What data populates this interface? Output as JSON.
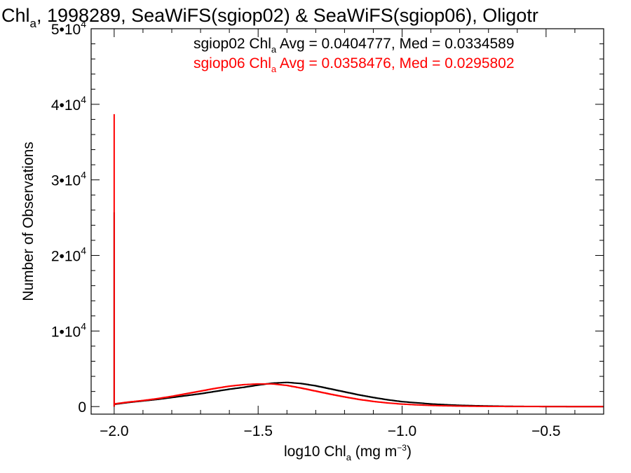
{
  "chart_data": {
    "type": "line",
    "title_parts": {
      "pre": "Chl",
      "sub": "a",
      "post": ", 1998289, SeaWiFS(sgiop02) & SeaWiFS(sgiop06), Oligotr"
    },
    "xlabel_parts": {
      "pre": "log10 Chl",
      "sub": "a",
      "mid": " (mg m",
      "sup": "−3",
      "post": ")"
    },
    "ylabel": "Number of Observations",
    "xlim": [
      -2.08,
      -0.3
    ],
    "ylim": [
      -1000,
      50000
    ],
    "x_ticks": [
      -2.0,
      -1.5,
      -1.0,
      -0.5
    ],
    "x_tick_labels": [
      "−2.0",
      "−1.5",
      "−1.0",
      "−0.5"
    ],
    "y_ticks": [
      0,
      10000,
      20000,
      30000,
      40000,
      50000
    ],
    "y_tick_labels": [
      {
        "value": 0,
        "mantissa": "0",
        "exponent": ""
      },
      {
        "value": 10000,
        "mantissa": "1•10",
        "exponent": "4"
      },
      {
        "value": 20000,
        "mantissa": "2•10",
        "exponent": "4"
      },
      {
        "value": 30000,
        "mantissa": "3•10",
        "exponent": "4"
      },
      {
        "value": 40000,
        "mantissa": "4•10",
        "exponent": "4"
      },
      {
        "value": 50000,
        "mantissa": "5•10",
        "exponent": "4"
      }
    ],
    "annotations": [
      {
        "series": "sgiop02",
        "color": "#000000",
        "pre": "sgiop02 Chl",
        "sub": "a",
        "post": " Avg = 0.0404777, Med = 0.0334589"
      },
      {
        "series": "sgiop06",
        "color": "#ff0000",
        "pre": "sgiop06 Chl",
        "sub": "a",
        "post": " Avg = 0.0358476, Med = 0.0295802"
      }
    ],
    "series": [
      {
        "name": "sgiop02",
        "color": "#000000",
        "spike": {
          "x": -2.0,
          "y": 25700
        },
        "x": [
          -2.0,
          -1.95,
          -1.9,
          -1.85,
          -1.8,
          -1.75,
          -1.7,
          -1.65,
          -1.6,
          -1.55,
          -1.5,
          -1.45,
          -1.4,
          -1.35,
          -1.3,
          -1.25,
          -1.2,
          -1.15,
          -1.1,
          -1.05,
          -1.0,
          -0.95,
          -0.9,
          -0.85,
          -0.8,
          -0.75,
          -0.7,
          -0.65,
          -0.6,
          -0.55,
          -0.5,
          -0.45,
          -0.4,
          -0.35,
          -0.3
        ],
        "y": [
          300,
          550,
          750,
          950,
          1200,
          1450,
          1700,
          2000,
          2300,
          2550,
          2850,
          3100,
          3200,
          3050,
          2750,
          2350,
          1950,
          1550,
          1200,
          900,
          650,
          500,
          350,
          250,
          170,
          120,
          80,
          50,
          30,
          20,
          10,
          5,
          0,
          0,
          0
        ]
      },
      {
        "name": "sgiop06",
        "color": "#ff0000",
        "spike": {
          "x": -2.0,
          "y": 38700
        },
        "x": [
          -2.0,
          -1.95,
          -1.9,
          -1.85,
          -1.8,
          -1.75,
          -1.7,
          -1.65,
          -1.6,
          -1.55,
          -1.5,
          -1.45,
          -1.4,
          -1.35,
          -1.3,
          -1.25,
          -1.2,
          -1.15,
          -1.1,
          -1.05,
          -1.0,
          -0.95,
          -0.9,
          -0.85,
          -0.8,
          -0.75,
          -0.7,
          -0.65,
          -0.6,
          -0.55,
          -0.5,
          -0.45,
          -0.4,
          -0.35,
          -0.3
        ],
        "y": [
          350,
          600,
          800,
          1050,
          1350,
          1700,
          2050,
          2400,
          2700,
          2900,
          3000,
          3000,
          2800,
          2450,
          2050,
          1650,
          1280,
          950,
          680,
          480,
          330,
          230,
          150,
          100,
          65,
          40,
          25,
          15,
          8,
          5,
          2,
          0,
          0,
          0,
          0
        ]
      }
    ]
  }
}
